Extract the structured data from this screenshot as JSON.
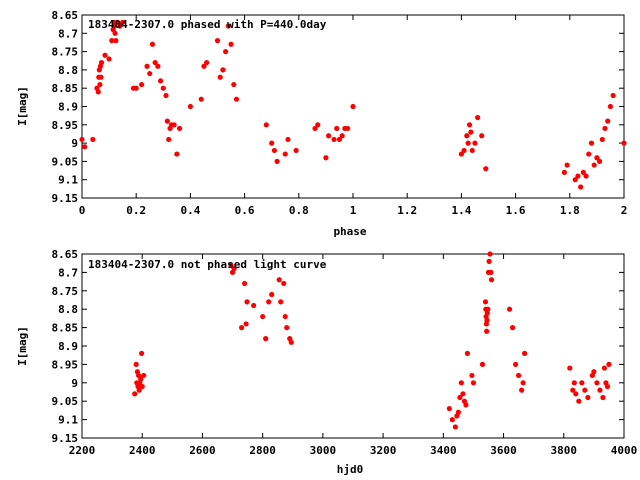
{
  "colors": {
    "marker": "#ff0000",
    "frame": "#000000",
    "background": "#ffffff"
  },
  "chart_data": [
    {
      "type": "scatter",
      "title": "183404-2307.0 phased with P=440.0day",
      "xlabel": "phase",
      "ylabel": "I[mag]",
      "xlim": [
        0,
        2
      ],
      "ylim": [
        8.65,
        9.15
      ],
      "y_inverted": true,
      "grid": false,
      "marker": "filled-circle",
      "x_ticks": [
        "0",
        "0.2",
        "0.4",
        "0.6",
        "0.8",
        "1",
        "1.2",
        "1.4",
        "1.6",
        "1.8",
        "2"
      ],
      "y_ticks": [
        "8.65",
        "8.7",
        "8.75",
        "8.8",
        "8.85",
        "8.9",
        "8.95",
        "9",
        "9.05",
        "9.1",
        "9.15"
      ],
      "x": [
        0.0,
        0.01,
        0.04,
        0.055,
        0.06,
        0.062,
        0.064,
        0.066,
        0.068,
        0.07,
        0.072,
        0.085,
        0.1,
        0.11,
        0.115,
        0.118,
        0.12,
        0.122,
        0.125,
        0.13,
        0.14,
        0.15,
        0.19,
        0.2,
        0.22,
        0.24,
        0.25,
        0.26,
        0.27,
        0.28,
        0.29,
        0.3,
        0.31,
        0.315,
        0.32,
        0.325,
        0.33,
        0.34,
        0.35,
        0.36,
        0.4,
        0.44,
        0.45,
        0.46,
        0.5,
        0.51,
        0.52,
        0.53,
        0.54,
        0.55,
        0.56,
        0.57,
        0.68,
        0.7,
        0.71,
        0.72,
        0.75,
        0.76,
        0.79,
        0.86,
        0.87,
        0.9,
        0.91,
        0.93,
        0.94,
        0.95,
        0.96,
        0.97,
        0.98,
        1.0,
        1.4,
        1.41,
        1.42,
        1.425,
        1.43,
        1.435,
        1.44,
        1.45,
        1.46,
        1.475,
        1.49,
        1.78,
        1.79,
        1.82,
        1.83,
        1.84,
        1.85,
        1.86,
        1.87,
        1.88,
        1.89,
        1.9,
        1.91,
        1.92,
        1.93,
        1.94,
        1.95,
        1.96,
        2.0
      ],
      "y": [
        8.99,
        9.01,
        8.99,
        8.85,
        8.86,
        8.82,
        8.8,
        8.84,
        8.79,
        8.82,
        8.78,
        8.76,
        8.77,
        8.72,
        8.69,
        8.67,
        8.68,
        8.7,
        8.72,
        8.67,
        8.68,
        8.67,
        8.85,
        8.85,
        8.84,
        8.79,
        8.81,
        8.73,
        8.78,
        8.79,
        8.83,
        8.85,
        8.87,
        8.94,
        8.99,
        8.96,
        8.95,
        8.95,
        9.03,
        8.96,
        8.9,
        8.88,
        8.79,
        8.78,
        8.72,
        8.82,
        8.8,
        8.75,
        8.68,
        8.73,
        8.84,
        8.88,
        8.95,
        9.0,
        9.02,
        9.05,
        9.03,
        8.99,
        9.02,
        8.96,
        8.95,
        9.04,
        8.98,
        8.99,
        8.96,
        8.99,
        8.98,
        8.96,
        8.96,
        8.9,
        9.03,
        9.02,
        8.98,
        9.0,
        8.95,
        8.97,
        9.02,
        9.0,
        8.93,
        8.98,
        9.07,
        9.08,
        9.06,
        9.1,
        9.09,
        9.12,
        9.08,
        9.09,
        9.03,
        9.0,
        9.06,
        9.04,
        9.05,
        8.99,
        8.96,
        8.94,
        8.9,
        8.87,
        9.0
      ]
    },
    {
      "type": "scatter",
      "title": "183404-2307.0 not phased light curve",
      "xlabel": "hjd0",
      "ylabel": "I[mag]",
      "xlim": [
        2200,
        4000
      ],
      "ylim": [
        8.65,
        9.15
      ],
      "y_inverted": true,
      "grid": false,
      "marker": "filled-circle",
      "x_ticks": [
        "2200",
        "2400",
        "2600",
        "2800",
        "3000",
        "3200",
        "3400",
        "3600",
        "3800",
        "4000"
      ],
      "y_ticks": [
        "8.65",
        "8.7",
        "8.75",
        "8.8",
        "8.85",
        "8.9",
        "8.95",
        "9",
        "9.05",
        "9.1",
        "9.15"
      ],
      "x": [
        2375,
        2380,
        2382,
        2384,
        2386,
        2388,
        2390,
        2392,
        2395,
        2398,
        2400,
        2405,
        2695,
        2700,
        2705,
        2730,
        2740,
        2745,
        2748,
        2770,
        2800,
        2810,
        2820,
        2830,
        2855,
        2860,
        2870,
        2875,
        2880,
        2890,
        2895,
        3420,
        3430,
        3440,
        3445,
        3450,
        3455,
        3460,
        3465,
        3470,
        3475,
        3480,
        3495,
        3500,
        3530,
        3540,
        3541,
        3542,
        3543,
        3544,
        3545,
        3546,
        3548,
        3550,
        3552,
        3555,
        3558,
        3560,
        3620,
        3630,
        3640,
        3650,
        3660,
        3665,
        3670,
        3820,
        3830,
        3835,
        3840,
        3850,
        3860,
        3870,
        3880,
        3895,
        3900,
        3910,
        3920,
        3930,
        3935,
        3940,
        3945,
        3950
      ],
      "y": [
        9.03,
        8.95,
        9.0,
        8.97,
        9.01,
        8.98,
        9.02,
        9.0,
        8.99,
        8.92,
        9.01,
        8.98,
        8.68,
        8.7,
        8.69,
        8.85,
        8.73,
        8.84,
        8.78,
        8.79,
        8.82,
        8.88,
        8.78,
        8.76,
        8.72,
        8.78,
        8.73,
        8.82,
        8.85,
        8.88,
        8.89,
        9.07,
        9.1,
        9.12,
        9.09,
        9.08,
        9.04,
        9.0,
        9.03,
        9.05,
        9.06,
        8.92,
        8.98,
        9.0,
        8.95,
        8.78,
        8.8,
        8.82,
        8.84,
        8.86,
        8.83,
        8.81,
        8.8,
        8.7,
        8.67,
        8.65,
        8.7,
        8.72,
        8.8,
        8.85,
        8.95,
        8.98,
        9.02,
        9.0,
        8.92,
        8.96,
        9.02,
        9.0,
        9.03,
        9.05,
        9.0,
        9.02,
        9.04,
        8.98,
        8.97,
        9.0,
        9.02,
        9.04,
        8.96,
        9.0,
        9.01,
        8.95
      ]
    }
  ]
}
